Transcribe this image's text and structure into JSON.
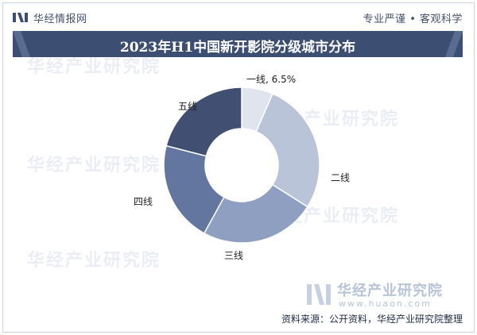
{
  "header": {
    "brand": "华经情报网",
    "slogan": "专业严谨 • 客观科学"
  },
  "watermarks": {
    "text": "华经产业研究院",
    "logo_name": "华经产业研究院",
    "logo_url": "www.huaon.com"
  },
  "footer": {
    "source": "资料来源：公开资料，华经产业研究院整理"
  },
  "colors": {
    "title_bg": "#3d4e73",
    "slices": [
      "#dfe4ee",
      "#b9c4d8",
      "#8f9fc1",
      "#63769f",
      "#404f72"
    ]
  },
  "chart_data": {
    "type": "pie",
    "donut": true,
    "title": "2023年H1中国新开影院分级城市分布",
    "categories": [
      "一线",
      "二线",
      "三线",
      "四线",
      "五线"
    ],
    "values": [
      6.5,
      27.5,
      24,
      21,
      21
    ],
    "data_labels": [
      "一线, 6.5%",
      "二线",
      "三线",
      "四线",
      "五线"
    ]
  }
}
